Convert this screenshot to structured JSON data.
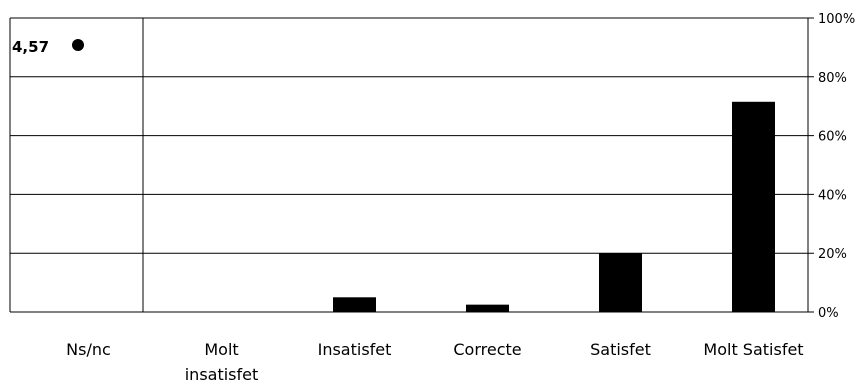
{
  "chart_data": {
    "type": "bar",
    "categories": [
      "Ns/nc",
      "Molt insatisfet",
      "Insatisfet",
      "Correcte",
      "Satisfet",
      "Molt Satisfet"
    ],
    "category_lines": [
      [
        "Ns/nc"
      ],
      [
        "Molt",
        "insatisfet"
      ],
      [
        "Insatisfet"
      ],
      [
        "Correcte"
      ],
      [
        "Satisfet"
      ],
      [
        "Molt Satisfet"
      ]
    ],
    "values": [
      0,
      0,
      5,
      2.5,
      20,
      71.5
    ],
    "ylim": [
      0,
      100
    ],
    "yticks": [
      0,
      20,
      40,
      60,
      80,
      100
    ],
    "ytick_labels": [
      "0%",
      "20%",
      "40%",
      "60%",
      "80%",
      "100%"
    ],
    "y_axis_side": "right",
    "grid": true,
    "bar_color": "#000000",
    "score": {
      "label": "4,57",
      "marker": "filled-circle"
    }
  }
}
